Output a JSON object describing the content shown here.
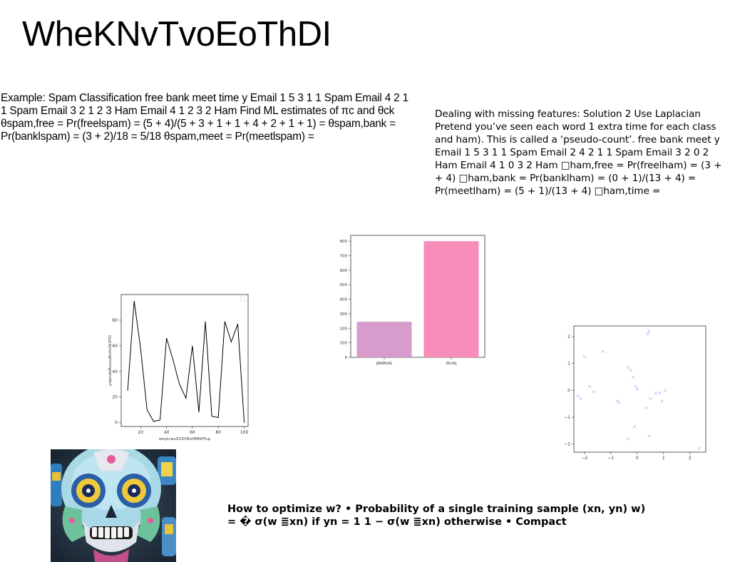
{
  "title": "WheKNvTvoEoThDI",
  "text_left": "Example: Spam Classification free bank meet time y Email 1 5 3 1 1 Spam Email 4 2 1 1 Spam Email 3 2 1 2 3 Ham Email 4 1 2 3 2 Ham Find ML estimates of πc and θck θspam,free = Pr(freelspam) = (5 + 4)/(5 + 3 + 1 + 1 + 4 + 2 + 1 + 1) = θspam,bank = Pr(banklspam) = (3 + 2)/18 = 5/18 θspam,meet = Pr(meetlspam) =",
  "text_right": "Dealing with missing features: Solution 2 Use Laplacian Pretend you’ve seen each word 1 extra time for each class and ham). This is called a ‘pseudo-count’. free bank meet y Email 1 5 3 1 1 Spam Email 2 4 2 1 1 Spam Email 3 2 0 2 Ham Email 4 1 0 3 2 Ham □ham,free = Pr(freelham) = (3 + + 4) □ham,bank = Pr(banklham) = (0 + 1)/(13 + 4) = Pr(meetlham) = (5 + 1)/(13 + 4) □ham,time =",
  "text_bottom": "How to optimize w? • Probability of a single training sample (xn, yn) w) = � σ(w ≣xn) if yn = 1 1 − σ(w ≣xn) otherwise • Compact",
  "chart_data": [
    {
      "type": "line",
      "xlabel": "weyLrwvZVGYBxHMNYFup",
      "ylabel": "yxJandoRuuuuRvhvSkXTO",
      "xlim": [
        5,
        103
      ],
      "ylim": [
        -3,
        100
      ],
      "xticks": [
        "20",
        "40",
        "60",
        "80",
        "100"
      ],
      "yticks": [
        "0",
        "20",
        "40",
        "60",
        "80"
      ],
      "x": [
        10,
        15,
        20,
        25,
        30,
        35,
        40,
        45,
        50,
        55,
        60,
        65,
        70,
        75,
        80,
        85,
        90,
        95,
        100
      ],
      "y": [
        25,
        95,
        58,
        10,
        1,
        2,
        66,
        49,
        30,
        19,
        60,
        8,
        79,
        5,
        4,
        79,
        63,
        77,
        0
      ],
      "color": "#000000"
    },
    {
      "type": "bar",
      "categories": [
        "jNABldG",
        "ZkcRj"
      ],
      "values": [
        245,
        800
      ],
      "colors": [
        "#d89ccc",
        "#f78db8"
      ],
      "ylim": [
        0,
        840
      ],
      "yticks": [
        "0",
        "100",
        "200",
        "300",
        "400",
        "500",
        "600",
        "700",
        "800"
      ]
    },
    {
      "type": "scatter",
      "xlim": [
        -2.4,
        2.6
      ],
      "ylim": [
        -2.3,
        2.4
      ],
      "xticks": [
        "−2",
        "−1",
        "0",
        "1",
        "2"
      ],
      "yticks": [
        "−2",
        "−1",
        "0",
        "1",
        "2"
      ],
      "marker": "x",
      "color": "#c9c2f5",
      "points": [
        [
          0.4,
          2.1
        ],
        [
          0.45,
          2.2
        ],
        [
          -2.0,
          1.25
        ],
        [
          -1.3,
          1.45
        ],
        [
          -1.8,
          0.15
        ],
        [
          -1.65,
          -0.05
        ],
        [
          -2.25,
          -0.2
        ],
        [
          -2.15,
          -0.3
        ],
        [
          -0.35,
          0.85
        ],
        [
          -0.25,
          0.75
        ],
        [
          -0.15,
          0.5
        ],
        [
          -0.05,
          0.15
        ],
        [
          0.0,
          0.05
        ],
        [
          -0.75,
          -0.4
        ],
        [
          -0.7,
          -0.45
        ],
        [
          0.5,
          -0.3
        ],
        [
          0.7,
          -0.1
        ],
        [
          0.85,
          -0.1
        ],
        [
          1.05,
          0.0
        ],
        [
          0.95,
          -0.4
        ],
        [
          0.35,
          -0.65
        ],
        [
          -0.1,
          -1.35
        ],
        [
          0.45,
          -1.7
        ],
        [
          -0.35,
          -1.8
        ],
        [
          2.35,
          -2.15
        ]
      ]
    }
  ]
}
